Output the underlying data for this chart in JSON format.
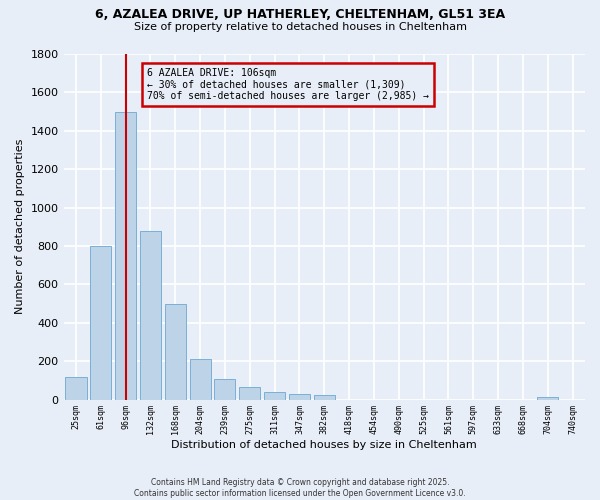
{
  "title_line1": "6, AZALEA DRIVE, UP HATHERLEY, CHELTENHAM, GL51 3EA",
  "title_line2": "Size of property relative to detached houses in Cheltenham",
  "xlabel": "Distribution of detached houses by size in Cheltenham",
  "ylabel": "Number of detached properties",
  "categories": [
    "25sqm",
    "61sqm",
    "96sqm",
    "132sqm",
    "168sqm",
    "204sqm",
    "239sqm",
    "275sqm",
    "311sqm",
    "347sqm",
    "382sqm",
    "418sqm",
    "454sqm",
    "490sqm",
    "525sqm",
    "561sqm",
    "597sqm",
    "633sqm",
    "668sqm",
    "704sqm",
    "740sqm"
  ],
  "values": [
    120,
    800,
    1500,
    880,
    500,
    210,
    105,
    65,
    40,
    30,
    25,
    0,
    0,
    0,
    0,
    0,
    0,
    0,
    0,
    15,
    0
  ],
  "bar_color": "#bdd4e8",
  "bar_edge_color": "#7aafd4",
  "annotation_text": "6 AZALEA DRIVE: 106sqm\n← 30% of detached houses are smaller (1,309)\n70% of semi-detached houses are larger (2,985) →",
  "vline_x": 2,
  "vline_color": "#cc0000",
  "annotation_box_color": "#cc0000",
  "ylim": [
    0,
    1800
  ],
  "yticks": [
    0,
    200,
    400,
    600,
    800,
    1000,
    1200,
    1400,
    1600,
    1800
  ],
  "background_color": "#e8eef8",
  "grid_color": "#ffffff",
  "footer": "Contains HM Land Registry data © Crown copyright and database right 2025.\nContains public sector information licensed under the Open Government Licence v3.0."
}
